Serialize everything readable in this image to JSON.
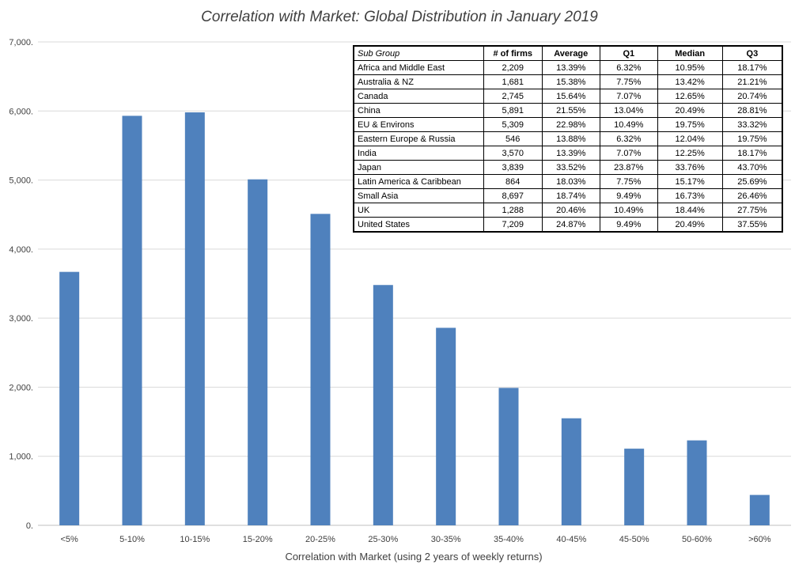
{
  "chart_data": {
    "type": "bar",
    "title": "Correlation with Market: Global Distribution in January 2019",
    "xlabel": "Correlation with Market (using 2 years of weekly returns)",
    "ylabel": "",
    "ylim": [
      0,
      7000
    ],
    "yticks": [
      "0.",
      "1,000.",
      "2,000.",
      "3,000.",
      "4,000.",
      "5,000.",
      "6,000.",
      "7,000."
    ],
    "ytick_values": [
      0,
      1000,
      2000,
      3000,
      4000,
      5000,
      6000,
      7000
    ],
    "grid": true,
    "bar_color": "#4f81bd",
    "categories": [
      "<5%",
      "5-10%",
      "10-15%",
      "15-20%",
      "20-25%",
      "25-30%",
      "30-35%",
      "35-40%",
      "40-45%",
      "45-50%",
      "50-60%",
      ">60%"
    ],
    "values": [
      3670,
      5930,
      5980,
      5010,
      4510,
      3480,
      2860,
      1990,
      1550,
      1110,
      1230,
      440
    ]
  },
  "table": {
    "headers": [
      "Sub Group",
      "# of firms",
      "Average",
      "Q1",
      "Median",
      "Q3"
    ],
    "rows": [
      [
        "Africa and Middle East",
        "2,209",
        "13.39%",
        "6.32%",
        "10.95%",
        "18.17%"
      ],
      [
        "Australia & NZ",
        "1,681",
        "15.38%",
        "7.75%",
        "13.42%",
        "21.21%"
      ],
      [
        "Canada",
        "2,745",
        "15.64%",
        "7.07%",
        "12.65%",
        "20.74%"
      ],
      [
        "China",
        "5,891",
        "21.55%",
        "13.04%",
        "20.49%",
        "28.81%"
      ],
      [
        "EU & Environs",
        "5,309",
        "22.98%",
        "10.49%",
        "19.75%",
        "33.32%"
      ],
      [
        "Eastern Europe & Russia",
        "546",
        "13.88%",
        "6.32%",
        "12.04%",
        "19.75%"
      ],
      [
        "India",
        "3,570",
        "13.39%",
        "7.07%",
        "12.25%",
        "18.17%"
      ],
      [
        "Japan",
        "3,839",
        "33.52%",
        "23.87%",
        "33.76%",
        "43.70%"
      ],
      [
        "Latin America & Caribbean",
        "864",
        "18.03%",
        "7.75%",
        "15.17%",
        "25.69%"
      ],
      [
        "Small Asia",
        "8,697",
        "18.74%",
        "9.49%",
        "16.73%",
        "26.46%"
      ],
      [
        "UK",
        "1,288",
        "20.46%",
        "10.49%",
        "18.44%",
        "27.75%"
      ],
      [
        "United States",
        "7,209",
        "24.87%",
        "9.49%",
        "20.49%",
        "37.55%"
      ]
    ]
  }
}
